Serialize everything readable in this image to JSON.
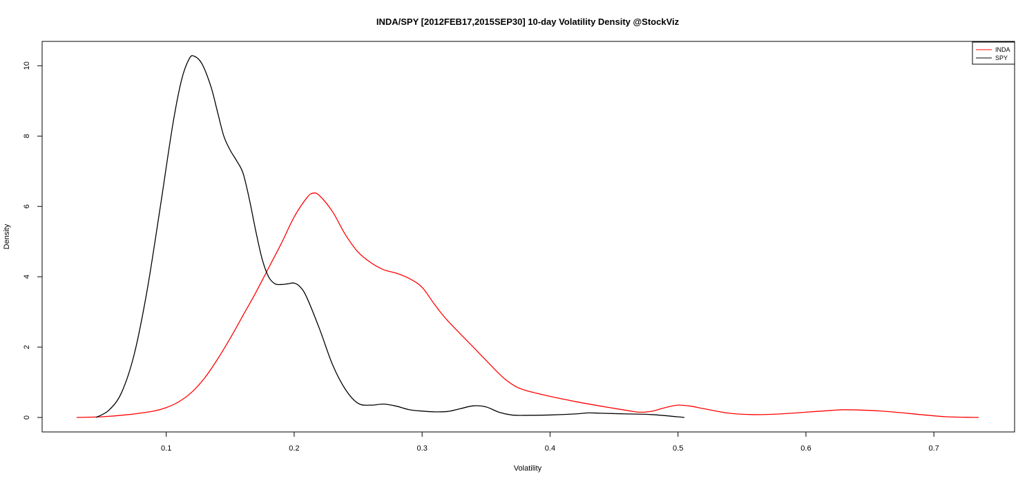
{
  "chart_data": {
    "type": "line",
    "title": "INDA/SPY [2012FEB17,2015SEP30] 10-day Volatility Density @StockViz",
    "xlabel": "Volatility",
    "ylabel": "Density",
    "xlim": [
      0.03,
      0.735
    ],
    "ylim": [
      0,
      10.3
    ],
    "x_ticks": [
      0.1,
      0.2,
      0.3,
      0.4,
      0.5,
      0.6,
      0.7
    ],
    "x_tick_labels": [
      "0.1",
      "0.2",
      "0.3",
      "0.4",
      "0.5",
      "0.6",
      "0.7"
    ],
    "y_ticks": [
      0,
      2,
      4,
      6,
      8,
      10
    ],
    "y_tick_labels": [
      "0",
      "2",
      "4",
      "6",
      "8",
      "10"
    ],
    "legend": {
      "placement": "top-right",
      "entries": [
        "INDA",
        "SPY"
      ]
    },
    "series": [
      {
        "name": "INDA",
        "color": "#ff0000",
        "x": [
          0.03,
          0.05,
          0.07,
          0.09,
          0.1,
          0.11,
          0.12,
          0.13,
          0.14,
          0.15,
          0.16,
          0.17,
          0.18,
          0.19,
          0.2,
          0.21,
          0.215,
          0.22,
          0.23,
          0.24,
          0.25,
          0.26,
          0.27,
          0.28,
          0.29,
          0.3,
          0.31,
          0.32,
          0.34,
          0.36,
          0.37,
          0.38,
          0.4,
          0.42,
          0.44,
          0.46,
          0.47,
          0.48,
          0.49,
          0.5,
          0.51,
          0.52,
          0.54,
          0.56,
          0.58,
          0.6,
          0.62,
          0.63,
          0.65,
          0.67,
          0.69,
          0.71,
          0.735
        ],
        "y": [
          0.0,
          0.02,
          0.08,
          0.18,
          0.28,
          0.45,
          0.72,
          1.12,
          1.65,
          2.25,
          2.9,
          3.55,
          4.25,
          4.95,
          5.7,
          6.25,
          6.38,
          6.3,
          5.85,
          5.2,
          4.7,
          4.4,
          4.2,
          4.1,
          3.95,
          3.7,
          3.2,
          2.75,
          2.0,
          1.25,
          0.95,
          0.78,
          0.6,
          0.45,
          0.32,
          0.2,
          0.15,
          0.18,
          0.28,
          0.35,
          0.32,
          0.25,
          0.12,
          0.08,
          0.1,
          0.15,
          0.2,
          0.22,
          0.2,
          0.15,
          0.08,
          0.02,
          0.0
        ]
      },
      {
        "name": "SPY",
        "color": "#000000",
        "x": [
          0.045,
          0.055,
          0.065,
          0.075,
          0.085,
          0.095,
          0.105,
          0.112,
          0.118,
          0.122,
          0.128,
          0.135,
          0.14,
          0.145,
          0.15,
          0.155,
          0.16,
          0.165,
          0.17,
          0.175,
          0.18,
          0.185,
          0.19,
          0.195,
          0.2,
          0.205,
          0.21,
          0.22,
          0.23,
          0.24,
          0.25,
          0.26,
          0.27,
          0.28,
          0.29,
          0.3,
          0.31,
          0.32,
          0.33,
          0.34,
          0.35,
          0.36,
          0.37,
          0.38,
          0.4,
          0.42,
          0.43,
          0.44,
          0.46,
          0.48,
          0.505
        ],
        "y": [
          0.0,
          0.2,
          0.7,
          1.8,
          3.6,
          5.9,
          8.3,
          9.6,
          10.2,
          10.27,
          10.05,
          9.4,
          8.7,
          8.0,
          7.6,
          7.3,
          6.95,
          6.2,
          5.3,
          4.5,
          4.0,
          3.8,
          3.78,
          3.8,
          3.82,
          3.7,
          3.4,
          2.5,
          1.5,
          0.8,
          0.4,
          0.35,
          0.38,
          0.32,
          0.22,
          0.18,
          0.16,
          0.17,
          0.25,
          0.33,
          0.3,
          0.15,
          0.07,
          0.06,
          0.07,
          0.1,
          0.13,
          0.12,
          0.1,
          0.08,
          0.0
        ]
      }
    ]
  }
}
